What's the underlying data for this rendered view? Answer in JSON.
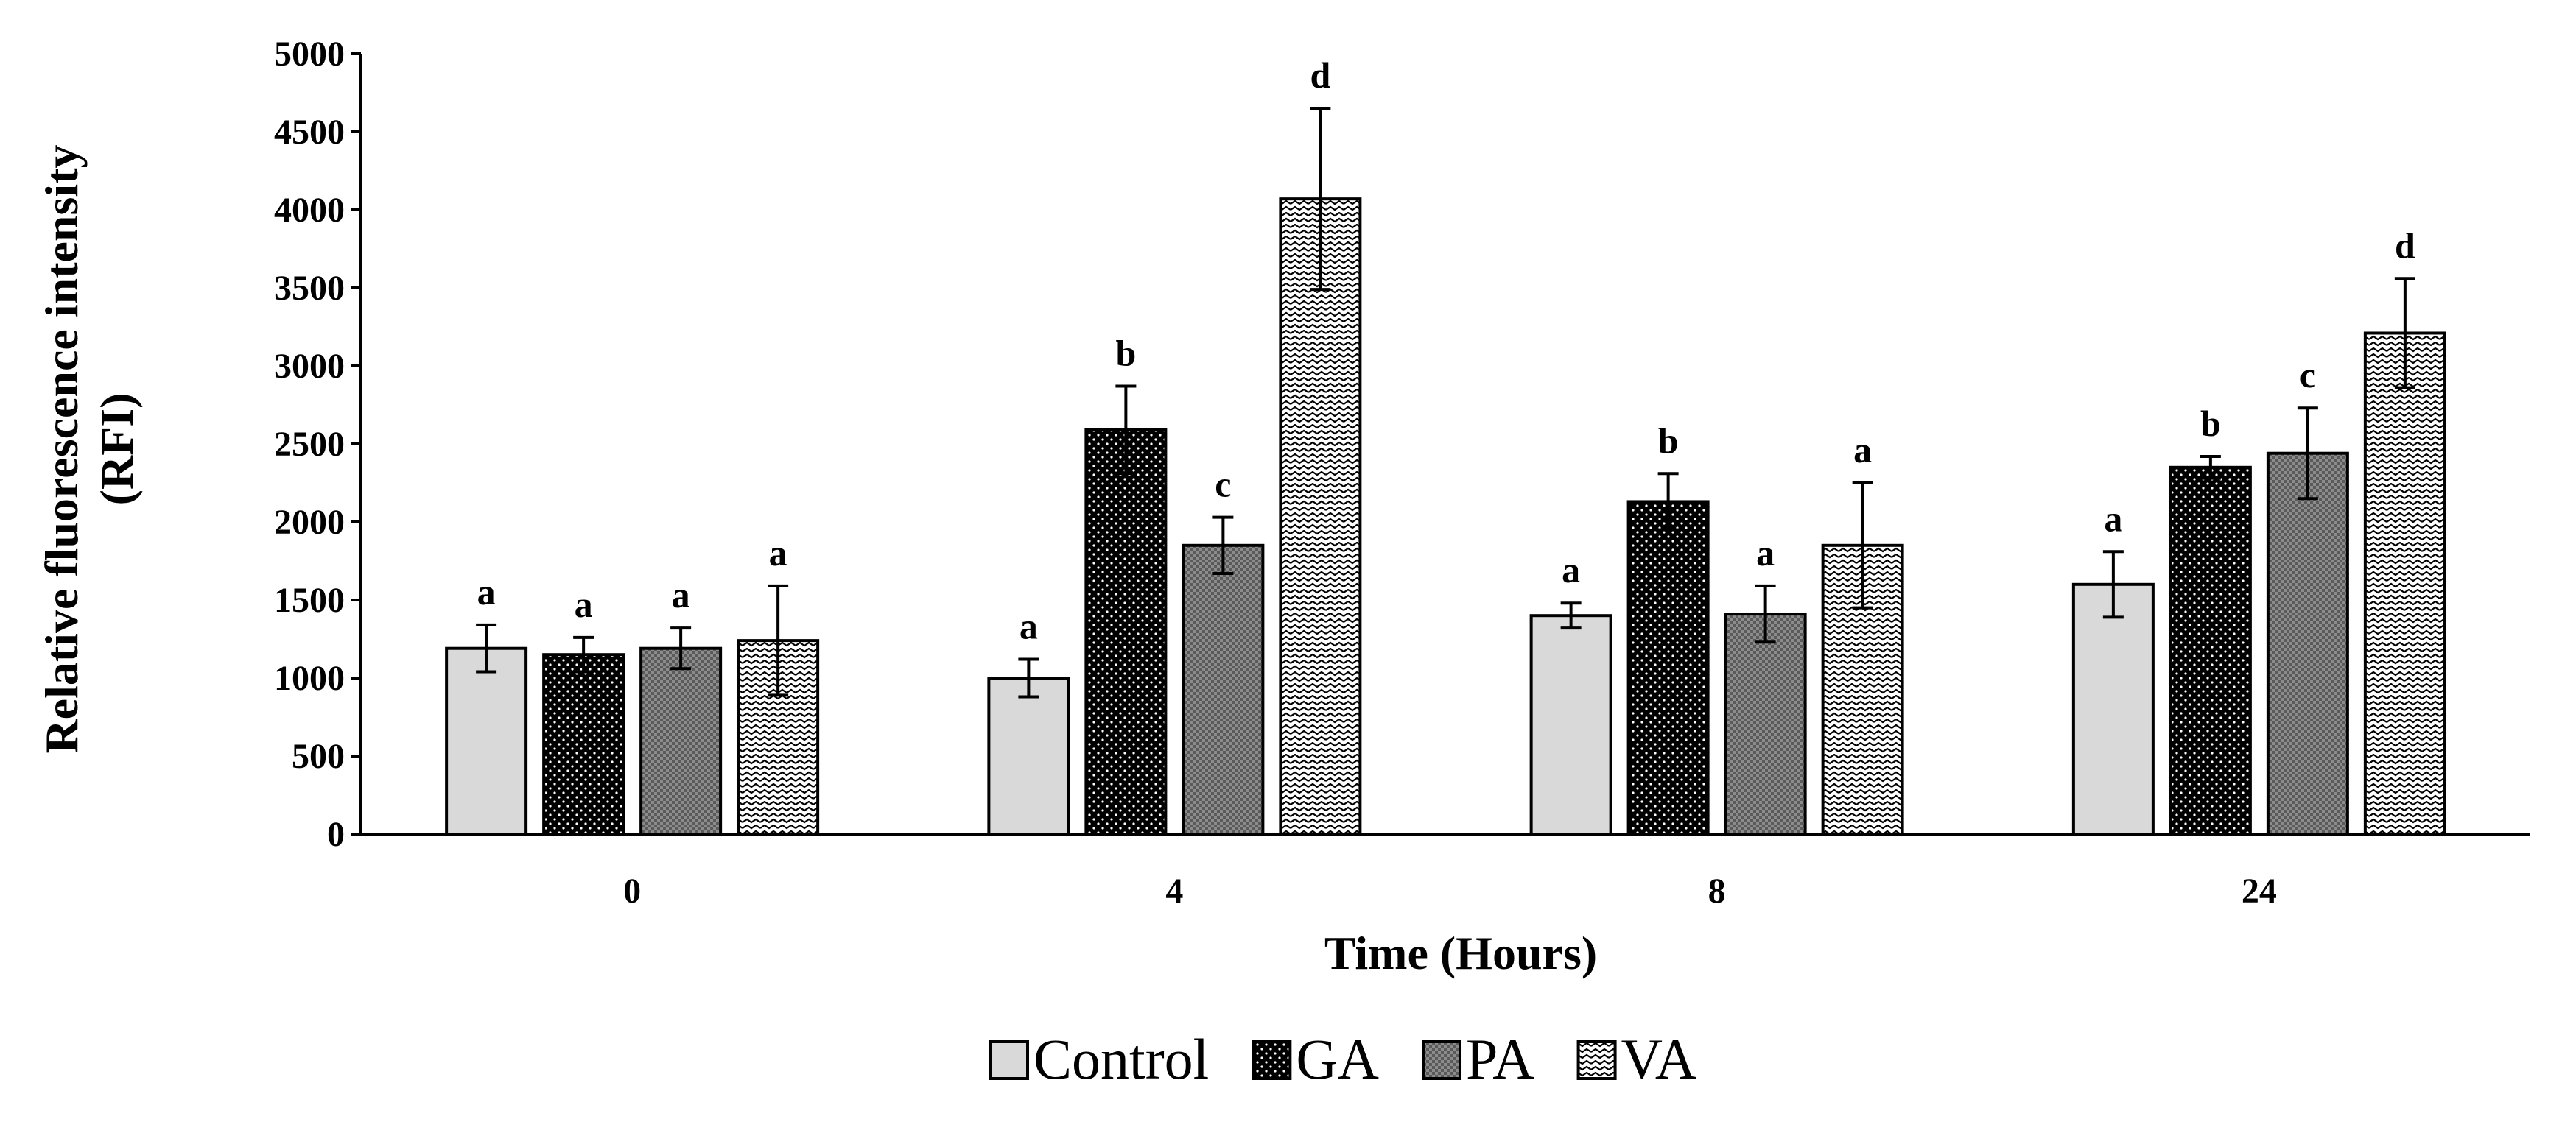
{
  "chart_data": {
    "type": "bar",
    "title": "",
    "xlabel": "Time (Hours)",
    "ylabel": "Relative fluorescence intensity",
    "ylabel_line2": "(RFI)",
    "categories": [
      "0",
      "4",
      "8",
      "24"
    ],
    "ylim": [
      0,
      5000
    ],
    "yticks": [
      "0",
      "500",
      "1000",
      "1500",
      "2000",
      "2500",
      "3000",
      "3500",
      "4000",
      "4500",
      "5000"
    ],
    "grid": false,
    "legend_position": "bottom",
    "series": [
      {
        "name": "Control",
        "pattern": "light-gray",
        "values": [
          1190,
          1000,
          1400,
          1600
        ],
        "errors": [
          150,
          120,
          80,
          210
        ],
        "letters": [
          "a",
          "a",
          "a",
          "a"
        ]
      },
      {
        "name": "GA",
        "pattern": "black-dotted",
        "values": [
          1150,
          2590,
          2130,
          2350
        ],
        "errors": [
          110,
          280,
          180,
          70
        ],
        "letters": [
          "a",
          "b",
          "b",
          "b"
        ]
      },
      {
        "name": "PA",
        "pattern": "gray-checker",
        "values": [
          1190,
          1850,
          1410,
          2440
        ],
        "errors": [
          130,
          180,
          180,
          290
        ],
        "letters": [
          "a",
          "c",
          "a",
          "c"
        ]
      },
      {
        "name": "VA",
        "pattern": "zigzag",
        "values": [
          1240,
          4070,
          1850,
          3210
        ],
        "errors": [
          350,
          580,
          400,
          350
        ],
        "letters": [
          "a",
          "d",
          "a",
          "d"
        ]
      }
    ]
  }
}
